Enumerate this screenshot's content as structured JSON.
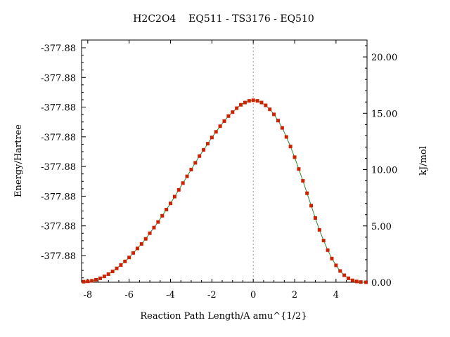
{
  "chart_data": {
    "type": "line",
    "title": "H2C2O4    EQ511 - TS3176 - EQ510",
    "xlabel": "Reaction Path Length/A amu^{1/2}",
    "ylabel_left": "Energy/Hartree",
    "ylabel_right": "kJ/mol",
    "xlim": [
      -8.3,
      5.5
    ],
    "ylim_kjmol": [
      0,
      21.5
    ],
    "x_ticks": [
      -8,
      -6,
      -4,
      -2,
      0,
      2,
      4
    ],
    "x_tick_labels": [
      "-8",
      "-6",
      "-4",
      "-2",
      "0",
      "2",
      "4"
    ],
    "y_left_tick_labels": [
      "-377.88",
      "-377.88",
      "-377.88",
      "-377.88",
      "-377.88",
      "-377.88",
      "-377.88",
      "-377.88"
    ],
    "y_right_ticks": [
      0,
      5,
      10,
      15,
      20
    ],
    "y_right_tick_labels": [
      "0.00",
      "5.00",
      "10.00",
      "15.00",
      "20.00"
    ],
    "ts_marker_x": 0,
    "grid": false,
    "colors": {
      "line": "#2e8b2e",
      "points": "#cc2200",
      "ts_line": "#999999"
    },
    "series": [
      {
        "x": [
          -8.2,
          -8.0,
          -7.8,
          -7.6,
          -7.4,
          -7.2,
          -7.0,
          -6.8,
          -6.6,
          -6.4,
          -6.2,
          -6.0,
          -5.8,
          -5.6,
          -5.4,
          -5.2,
          -5.0,
          -4.8,
          -4.6,
          -4.4,
          -4.2,
          -4.0,
          -3.8,
          -3.6,
          -3.4,
          -3.2,
          -3.0,
          -2.8,
          -2.6,
          -2.4,
          -2.2,
          -2.0,
          -1.8,
          -1.6,
          -1.4,
          -1.2,
          -1.0,
          -0.8,
          -0.6,
          -0.4,
          -0.2,
          0.0,
          0.2,
          0.4,
          0.6,
          0.8,
          1.0,
          1.2,
          1.4,
          1.6,
          1.8,
          2.0,
          2.2,
          2.4,
          2.6,
          2.8,
          3.0,
          3.2,
          3.4,
          3.6,
          3.8,
          4.0,
          4.2,
          4.4,
          4.6,
          4.8,
          5.0,
          5.2,
          5.45
        ],
        "y": [
          0.05,
          0.08,
          0.13,
          0.22,
          0.35,
          0.52,
          0.72,
          0.96,
          1.23,
          1.53,
          1.85,
          2.2,
          2.6,
          3.0,
          3.4,
          3.85,
          4.35,
          4.85,
          5.35,
          5.9,
          6.45,
          7.0,
          7.6,
          8.2,
          8.8,
          9.4,
          10.0,
          10.6,
          11.2,
          11.75,
          12.3,
          12.85,
          13.35,
          13.85,
          14.3,
          14.75,
          15.1,
          15.45,
          15.75,
          15.95,
          16.1,
          16.15,
          16.1,
          15.95,
          15.7,
          15.35,
          14.9,
          14.35,
          13.7,
          12.9,
          12.05,
          11.1,
          10.05,
          9.0,
          7.9,
          6.8,
          5.7,
          4.65,
          3.7,
          2.85,
          2.1,
          1.5,
          1.0,
          0.62,
          0.35,
          0.17,
          0.07,
          0.02,
          0.0
        ]
      }
    ]
  }
}
